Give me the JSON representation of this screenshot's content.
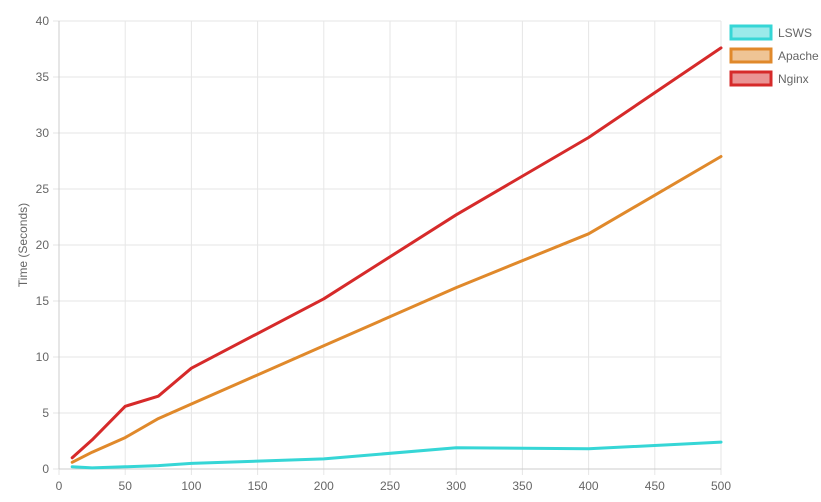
{
  "chart_data": {
    "type": "line",
    "title": "",
    "xlabel": "",
    "ylabel": "Time (Seconds)",
    "xlim": [
      0,
      500
    ],
    "ylim": [
      0,
      40
    ],
    "x_ticks": [
      0,
      50,
      100,
      150,
      200,
      250,
      300,
      350,
      400,
      450,
      500
    ],
    "y_ticks": [
      0,
      5,
      10,
      15,
      20,
      25,
      30,
      35,
      40
    ],
    "grid": true,
    "legend_position": "top-right",
    "series": [
      {
        "name": "LSWS",
        "color": "#36d6d6",
        "fill": "rgba(54,214,214,0.5)",
        "points": [
          [
            10,
            0.2
          ],
          [
            25,
            0.1
          ],
          [
            50,
            0.2
          ],
          [
            75,
            0.3
          ],
          [
            100,
            0.5
          ],
          [
            200,
            0.9
          ],
          [
            300,
            1.9
          ],
          [
            400,
            1.8
          ],
          [
            500,
            2.4
          ]
        ]
      },
      {
        "name": "Apache",
        "color": "#e0892b",
        "fill": "rgba(224,137,43,0.5)",
        "points": [
          [
            10,
            0.6
          ],
          [
            25,
            1.5
          ],
          [
            50,
            2.8
          ],
          [
            75,
            4.5
          ],
          [
            100,
            5.8
          ],
          [
            200,
            11.0
          ],
          [
            300,
            16.2
          ],
          [
            400,
            21.0
          ],
          [
            500,
            27.9
          ]
        ]
      },
      {
        "name": "Nginx",
        "color": "#d62a2a",
        "fill": "rgba(214,42,42,0.5)",
        "points": [
          [
            10,
            1.0
          ],
          [
            25,
            2.6
          ],
          [
            50,
            5.6
          ],
          [
            75,
            6.5
          ],
          [
            100,
            9.0
          ],
          [
            200,
            15.2
          ],
          [
            300,
            22.7
          ],
          [
            400,
            29.6
          ],
          [
            500,
            37.6
          ]
        ]
      }
    ]
  }
}
